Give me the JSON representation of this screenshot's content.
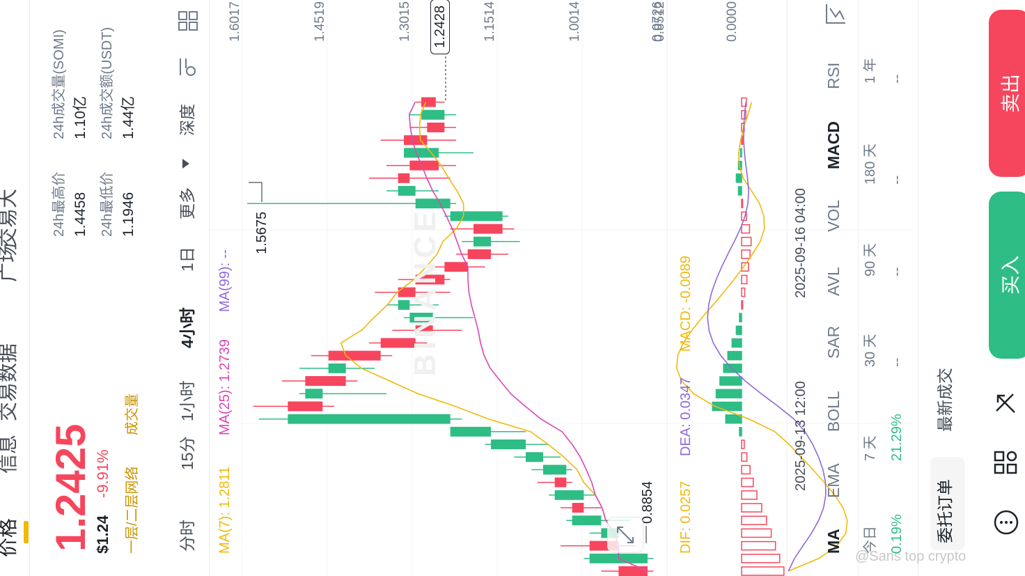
{
  "tabs": [
    {
      "label": "价格",
      "active": true
    },
    {
      "label": "信息",
      "active": false
    },
    {
      "label": "交易数据",
      "active": false
    },
    {
      "label": "广场",
      "active": false
    },
    {
      "label": "交易大",
      "active": false
    }
  ],
  "price": {
    "last": "1.2425",
    "usd": "$1.24",
    "change": "-9.91%",
    "tags": [
      "一层/二层网络",
      "成交量"
    ]
  },
  "stats": [
    {
      "label": "24h最高价",
      "value": "1.4458"
    },
    {
      "label": "24h最低价",
      "value": "1.1946"
    },
    {
      "label": "24h成交量(SOMI)",
      "value": "1.10亿"
    },
    {
      "label": "24h成交额(USDT)",
      "value": "1.44亿"
    }
  ],
  "intervals": [
    {
      "label": "分时",
      "active": false
    },
    {
      "label": "15分",
      "active": false
    },
    {
      "label": "1小时",
      "active": false
    },
    {
      "label": "4小时",
      "active": true
    },
    {
      "label": "1日",
      "active": false
    },
    {
      "label": "更多",
      "active": false
    },
    {
      "label": "深度",
      "active": false
    }
  ],
  "ma_legend": [
    {
      "label": "MA(7): 1.2811",
      "color": "#f0b90b"
    },
    {
      "label": "MA(25): 1.2739",
      "color": "#d946b6"
    },
    {
      "label": "MA(99): --",
      "color": "#8e6ad6"
    }
  ],
  "price_axis": [
    "1.6017",
    "1.4519",
    "1.3015",
    "1.1514",
    "1.0014",
    "0.8512"
  ],
  "current_price_label": "1.2428",
  "high_marker": "1.5675",
  "low_marker": "0.8854",
  "watermark": "BINANCE",
  "macd_axis": [
    "0.0726",
    "0.0000"
  ],
  "macd_legend": [
    {
      "label": "DIF: 0.0257",
      "color": "#f0b90b"
    },
    {
      "label": "DEA: 0.0347",
      "color": "#8e6ad6"
    },
    {
      "label": "MACD: -0.0089",
      "color": "#f0b90b"
    }
  ],
  "time_axis": [
    "2025-09-13 12:00",
    "2025-09-16 04:00"
  ],
  "indicators": [
    {
      "label": "MA",
      "active": true
    },
    {
      "label": "EMA",
      "active": false
    },
    {
      "label": "BOLL",
      "active": false
    },
    {
      "label": "SAR",
      "active": false
    },
    {
      "label": "AVL",
      "active": false
    },
    {
      "label": "VOL",
      "active": false
    },
    {
      "label": "MACD",
      "active": true
    },
    {
      "label": "RSI",
      "active": false
    }
  ],
  "performance": [
    {
      "label": "今日",
      "value": "0.19%",
      "color": "#2ebd85"
    },
    {
      "label": "7 天",
      "value": "21.29%",
      "color": "#2ebd85"
    },
    {
      "label": "30 天",
      "value": "--",
      "color": "#707a8a"
    },
    {
      "label": "90 天",
      "value": "--",
      "color": "#707a8a"
    },
    {
      "label": "180 天",
      "value": "--",
      "color": "#707a8a"
    },
    {
      "label": "1 年",
      "value": "--",
      "color": "#707a8a"
    }
  ],
  "bottom_tabs": {
    "orders": "委托订单",
    "trades": "最新成交"
  },
  "actions": {
    "buy": "买入",
    "sell": "卖出"
  },
  "footer_watermark": "@Sans top crypto",
  "colors": {
    "up": "#2ebd85",
    "down": "#f6465d",
    "accent": "#f0b90b"
  },
  "chart_data": {
    "type": "candlestick",
    "ylim": [
      0.85,
      1.6
    ],
    "candles": [
      {
        "o": 0.93,
        "h": 0.96,
        "l": 0.87,
        "c": 0.88
      },
      {
        "o": 0.88,
        "h": 0.99,
        "l": 0.87,
        "c": 0.98
      },
      {
        "o": 0.98,
        "h": 1.03,
        "l": 0.9,
        "c": 0.93
      },
      {
        "o": 0.93,
        "h": 0.98,
        "l": 0.92,
        "c": 0.96
      },
      {
        "o": 0.96,
        "h": 1.02,
        "l": 0.91,
        "c": 1.01
      },
      {
        "o": 1.01,
        "h": 1.03,
        "l": 0.96,
        "c": 0.99
      },
      {
        "o": 0.99,
        "h": 1.05,
        "l": 0.97,
        "c": 1.04
      },
      {
        "o": 1.04,
        "h": 1.07,
        "l": 1.01,
        "c": 1.02
      },
      {
        "o": 1.02,
        "h": 1.08,
        "l": 1.01,
        "c": 1.06
      },
      {
        "o": 1.06,
        "h": 1.11,
        "l": 1.03,
        "c": 1.09
      },
      {
        "o": 1.09,
        "h": 1.16,
        "l": 1.05,
        "c": 1.15
      },
      {
        "o": 1.15,
        "h": 1.22,
        "l": 1.09,
        "c": 1.22
      },
      {
        "o": 1.22,
        "h": 1.55,
        "l": 1.2,
        "c": 1.5
      },
      {
        "o": 1.5,
        "h": 1.56,
        "l": 1.42,
        "c": 1.44
      },
      {
        "o": 1.44,
        "h": 1.48,
        "l": 1.33,
        "c": 1.47
      },
      {
        "o": 1.47,
        "h": 1.51,
        "l": 1.38,
        "c": 1.4
      },
      {
        "o": 1.4,
        "h": 1.48,
        "l": 1.35,
        "c": 1.43
      },
      {
        "o": 1.43,
        "h": 1.46,
        "l": 1.32,
        "c": 1.34
      },
      {
        "o": 1.34,
        "h": 1.36,
        "l": 1.26,
        "c": 1.28
      },
      {
        "o": 1.28,
        "h": 1.32,
        "l": 1.2,
        "c": 1.25
      },
      {
        "o": 1.25,
        "h": 1.3,
        "l": 1.18,
        "c": 1.29
      },
      {
        "o": 1.29,
        "h": 1.33,
        "l": 1.24,
        "c": 1.31
      },
      {
        "o": 1.31,
        "h": 1.35,
        "l": 1.22,
        "c": 1.28
      },
      {
        "o": 1.28,
        "h": 1.31,
        "l": 1.22,
        "c": 1.23
      },
      {
        "o": 1.23,
        "h": 1.27,
        "l": 1.16,
        "c": 1.19
      },
      {
        "o": 1.19,
        "h": 1.21,
        "l": 1.12,
        "c": 1.15
      },
      {
        "o": 1.15,
        "h": 1.2,
        "l": 1.1,
        "c": 1.18
      },
      {
        "o": 1.18,
        "h": 1.22,
        "l": 1.11,
        "c": 1.13
      },
      {
        "o": 1.13,
        "h": 1.23,
        "l": 1.12,
        "c": 1.22
      },
      {
        "o": 1.22,
        "h": 1.57,
        "l": 1.21,
        "c": 1.28
      },
      {
        "o": 1.28,
        "h": 1.33,
        "l": 1.24,
        "c": 1.31
      },
      {
        "o": 1.31,
        "h": 1.36,
        "l": 1.22,
        "c": 1.29
      },
      {
        "o": 1.29,
        "h": 1.33,
        "l": 1.21,
        "c": 1.24
      },
      {
        "o": 1.24,
        "h": 1.3,
        "l": 1.18,
        "c": 1.3
      },
      {
        "o": 1.3,
        "h": 1.34,
        "l": 1.21,
        "c": 1.26
      },
      {
        "o": 1.26,
        "h": 1.29,
        "l": 1.21,
        "c": 1.23
      },
      {
        "o": 1.23,
        "h": 1.29,
        "l": 1.21,
        "c": 1.27
      },
      {
        "o": 1.27,
        "h": 1.28,
        "l": 1.23,
        "c": 1.245
      }
    ],
    "macd_ylim": [
      -0.09,
      0.07
    ],
    "macd_hist": [
      -0.08,
      -0.072,
      -0.064,
      -0.056,
      -0.047,
      -0.038,
      -0.029,
      -0.022,
      -0.016,
      -0.01,
      -0.005,
      0.004,
      0.03,
      0.055,
      0.048,
      0.041,
      0.034,
      0.026,
      0.018,
      0.01,
      0.004,
      -0.002,
      -0.006,
      -0.01,
      -0.013,
      -0.016,
      -0.018,
      -0.015,
      -0.009,
      -0.002,
      0.006,
      0.01,
      0.006,
      0.002,
      -0.002,
      -0.005,
      -0.008,
      -0.009
    ]
  }
}
